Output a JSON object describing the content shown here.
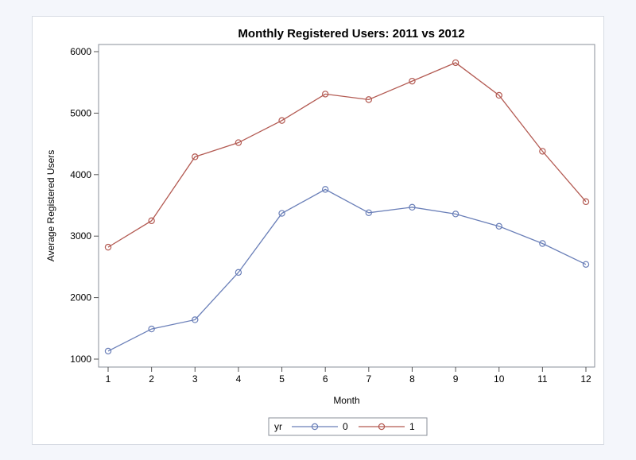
{
  "chart_data": {
    "type": "line",
    "title": "Monthly Registered Users: 2011 vs 2012",
    "xlabel": "Month",
    "ylabel": "Average Registered Users",
    "x": [
      1,
      2,
      3,
      4,
      5,
      6,
      7,
      8,
      9,
      10,
      11,
      12
    ],
    "xlim": [
      1,
      12
    ],
    "ylim": [
      1000,
      6000
    ],
    "yticks": [
      1000,
      2000,
      3000,
      4000,
      5000,
      6000
    ],
    "grid": false,
    "legend": {
      "title": "yr",
      "position": "bottom-center"
    },
    "series": [
      {
        "name": "0",
        "color": "#6a7fb8",
        "values": [
          1130,
          1490,
          1640,
          2410,
          3370,
          3760,
          3380,
          3470,
          3360,
          3160,
          2880,
          2540
        ]
      },
      {
        "name": "1",
        "color": "#b35a52",
        "values": [
          2820,
          3250,
          4290,
          4520,
          4880,
          5310,
          5220,
          5520,
          5820,
          5290,
          4380,
          3560
        ]
      }
    ]
  }
}
